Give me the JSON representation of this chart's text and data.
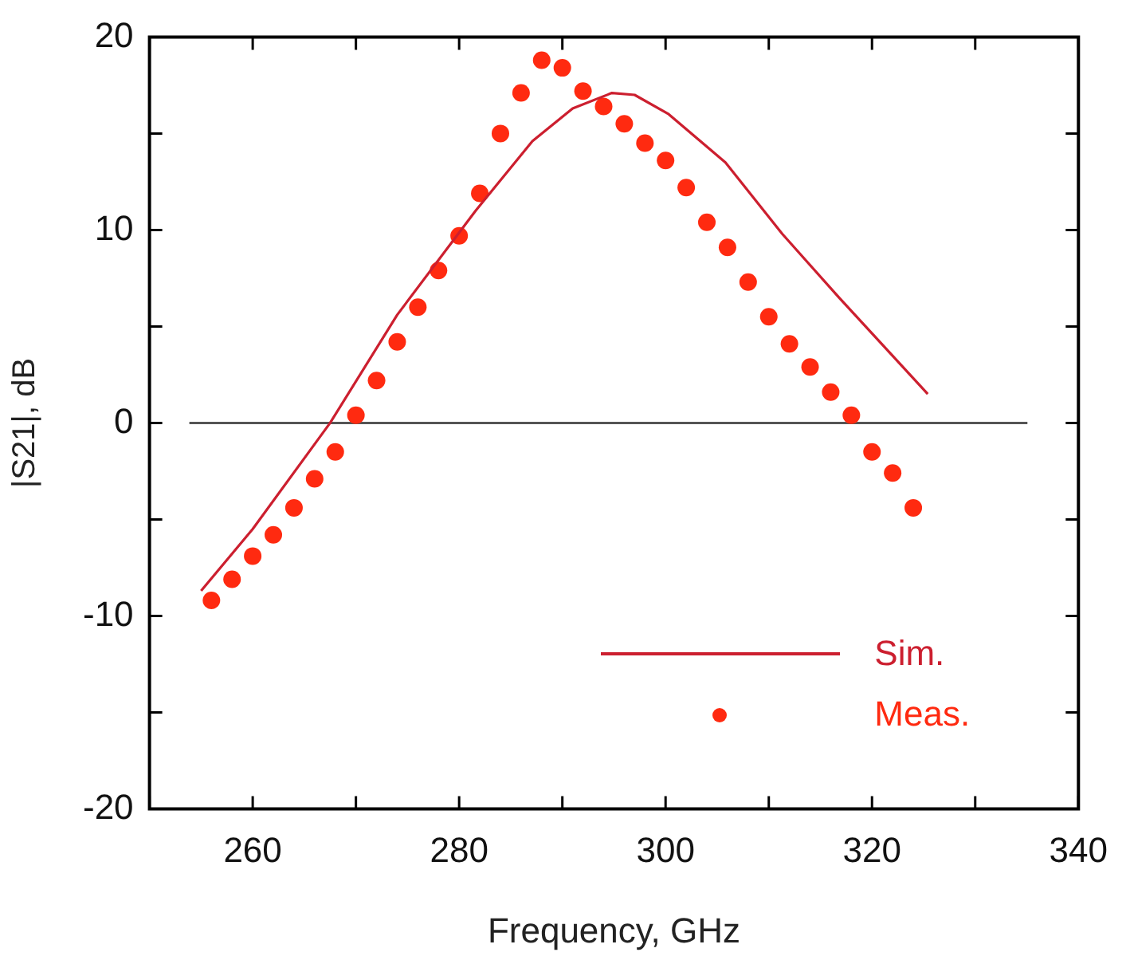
{
  "chart_data": {
    "type": "line",
    "xlabel": "Frequency, GHz",
    "ylabel": "|S21|, dB",
    "xlim": [
      250,
      340
    ],
    "ylim": [
      -20,
      20
    ],
    "xticks": [
      {
        "value": 250,
        "label": null
      },
      260,
      {
        "value": 270,
        "label": null
      },
      280,
      {
        "value": 290,
        "label": null
      },
      300,
      {
        "value": 310,
        "label": null
      },
      320,
      {
        "value": 330,
        "label": null
      },
      340
    ],
    "yticks": [
      -20,
      {
        "value": -15,
        "label": null
      },
      -10,
      {
        "value": -5,
        "label": null
      },
      0,
      {
        "value": 5,
        "label": null
      },
      10,
      {
        "value": 15,
        "label": null
      },
      20
    ],
    "grid": false,
    "legend": "bottom right",
    "ref_lines": [
      {
        "axis": "y",
        "value": 0,
        "color": "#555555"
      }
    ],
    "series": [
      {
        "name": "Sim.",
        "type": "line",
        "color": "#cc1f2f",
        "marker": "none",
        "line_style": "solid",
        "x": [
          255,
          260,
          267.5,
          274,
          281.6,
          287.1,
          291,
          294.8,
          297,
          300.3,
          305.8,
          311.3,
          316.8,
          325.4
        ],
        "values": [
          -8.7,
          -5.5,
          0,
          5.6,
          11.0,
          14.6,
          16.3,
          17.1,
          17.0,
          16.0,
          13.5,
          9.8,
          6.5,
          1.5
        ]
      },
      {
        "name": "Meas.",
        "type": "scatter",
        "color": "#ff2a10",
        "marker": "circle",
        "x": [
          256,
          258,
          260,
          262,
          264,
          266,
          268,
          270,
          272,
          274,
          276,
          278,
          280,
          282,
          284,
          286,
          288,
          290,
          292,
          294,
          296,
          298,
          300,
          302,
          304,
          306,
          308,
          310,
          312,
          314,
          316,
          318,
          320,
          322,
          324
        ],
        "values": [
          -9.2,
          -8.1,
          -6.9,
          -5.8,
          -4.4,
          -2.9,
          -1.5,
          0.4,
          2.2,
          4.2,
          6.0,
          7.9,
          9.7,
          11.9,
          15.0,
          17.1,
          18.8,
          18.4,
          17.2,
          16.4,
          15.5,
          14.5,
          13.6,
          12.2,
          10.4,
          9.1,
          7.3,
          5.5,
          4.1,
          2.9,
          1.6,
          0.4,
          -1.5,
          -2.6,
          -4.4
        ]
      }
    ]
  }
}
